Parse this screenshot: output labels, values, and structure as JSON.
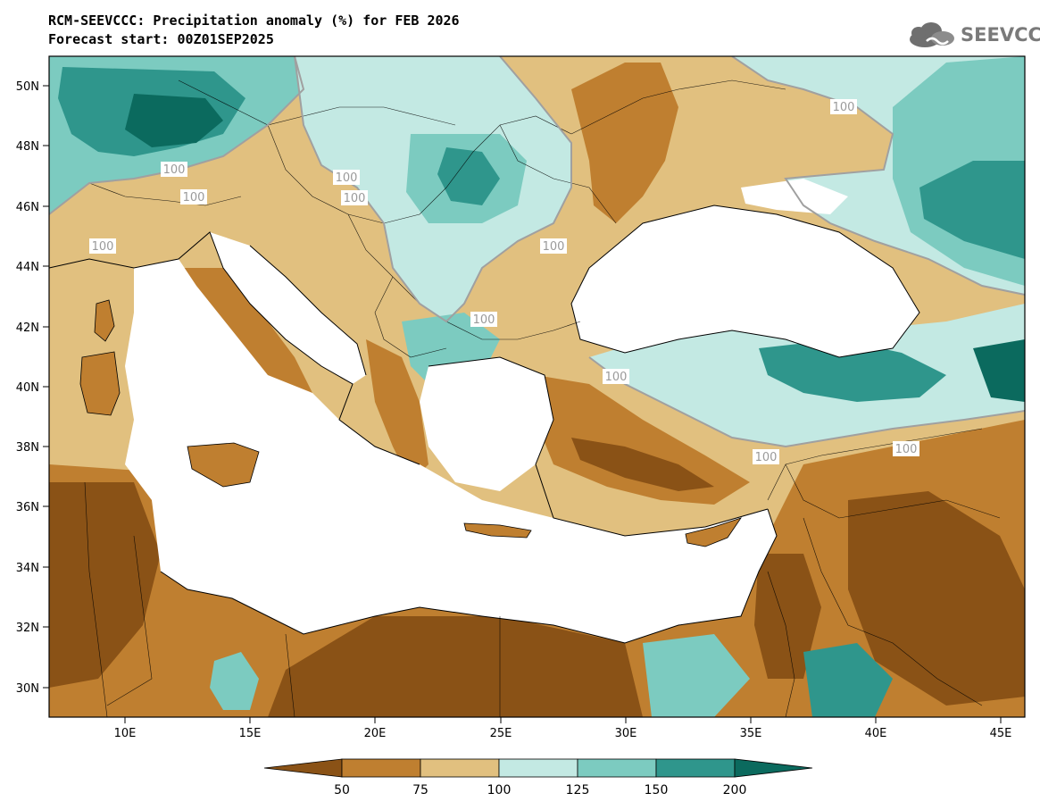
{
  "header": {
    "title": "RCM-SEEVCCC: Precipitation anomaly (%) for FEB 2026",
    "subtitle": "Forecast start: 00Z01SEP2025"
  },
  "logo": {
    "text": "SEEVCCC",
    "icon": "cloud-icon"
  },
  "axes": {
    "lat_ticks": [
      "50N",
      "48N",
      "46N",
      "44N",
      "42N",
      "40N",
      "38N",
      "36N",
      "34N",
      "32N",
      "30N"
    ],
    "lon_ticks": [
      "10E",
      "15E",
      "20E",
      "25E",
      "30E",
      "35E",
      "40E",
      "45E"
    ]
  },
  "contour_labels": [
    "100",
    "100",
    "100",
    "100",
    "100",
    "100",
    "100",
    "100",
    "100",
    "100",
    "100"
  ],
  "colorbar": {
    "labels": [
      "50",
      "75",
      "100",
      "125",
      "150",
      "200"
    ],
    "colors": [
      "#8a5216",
      "#bf7f30",
      "#e1c07f",
      "#c3e9e3",
      "#7ccbc0",
      "#2f968c",
      "#0b6a5e"
    ]
  },
  "palette": {
    "land": "#e1c07f",
    "sea": "#ffffff",
    "coast": "#000000",
    "contour": "#a0a0a0"
  }
}
